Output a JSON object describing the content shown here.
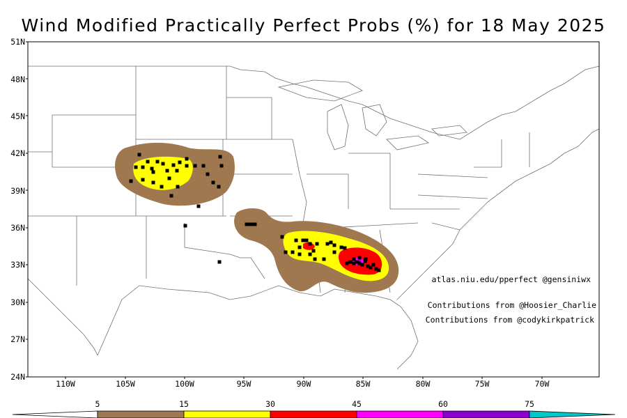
{
  "title": "Wind Modified Practically Perfect Probs (%) for 18 May 2025",
  "lat_ticks": [
    "51N",
    "48N",
    "45N",
    "42N",
    "39N",
    "36N",
    "33N",
    "30N",
    "27N",
    "24N"
  ],
  "lon_ticks": [
    "110W",
    "105W",
    "100W",
    "95W",
    "90W",
    "85W",
    "80W",
    "75W",
    "70W"
  ],
  "credits": {
    "site": "atlas.niu.edu/pperfect @gensiniwx",
    "contrib1": "Contributions from @Hoosier_Charlie",
    "contrib2": "Contributions from @codykirkpatrick"
  },
  "legend": {
    "levels": [
      "5",
      "15",
      "30",
      "45",
      "60",
      "75"
    ],
    "colors": {
      "c5": "#a07850",
      "c15": "#ffff00",
      "c30": "#ff0000",
      "c45": "#ff00ff",
      "c60": "#8a00d0",
      "c75": "#00c8c8"
    }
  },
  "colors": {
    "prob_5": "#a07850",
    "prob_15": "#ffff00",
    "prob_30": "#ff0000",
    "prob_45": "#ff00ff",
    "prob_60": "#8a00d0",
    "report": "#000000",
    "boundary": "#707070"
  }
}
